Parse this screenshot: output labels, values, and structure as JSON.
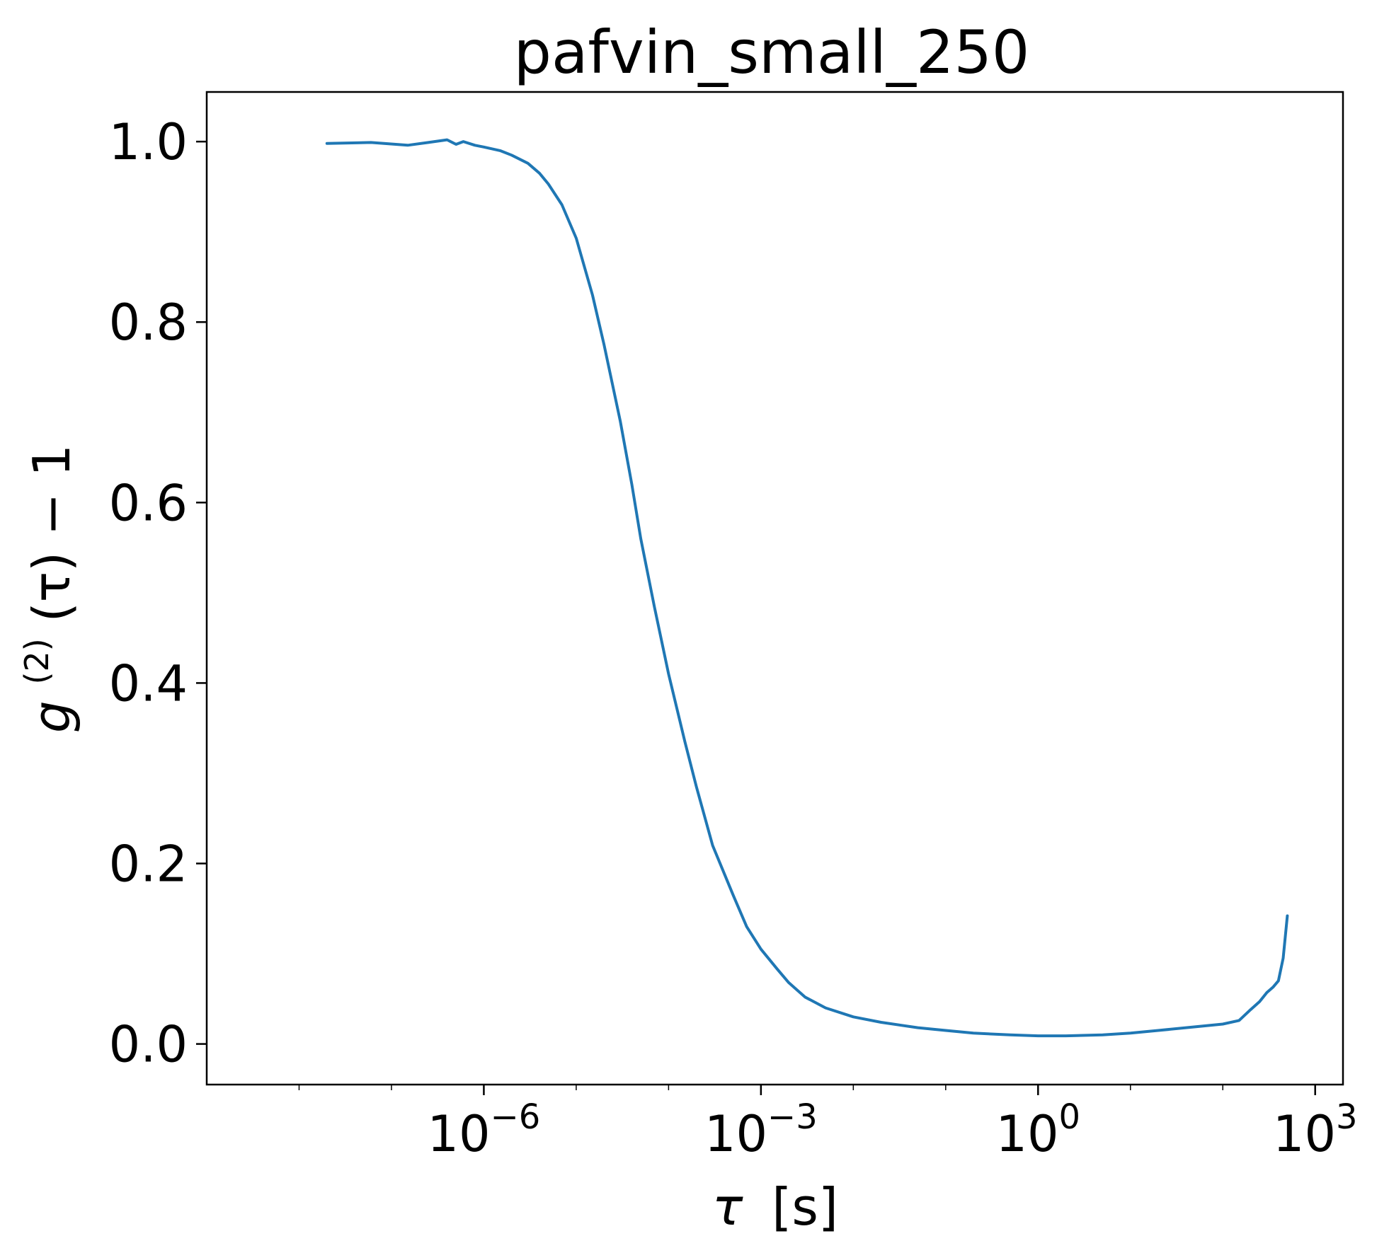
{
  "chart_data": {
    "type": "line",
    "title": "pafvin_small_250",
    "xlabel": {
      "symbol": "τ",
      "unit": "[s]"
    },
    "ylabel": {
      "base": "g",
      "superscript": "(2)",
      "rest": "(τ) − 1"
    },
    "xscale": "log",
    "xlim": [
      1e-09,
      2000
    ],
    "ylim": [
      -0.045,
      1.055
    ],
    "grid": false,
    "legend": "none",
    "colors": {
      "line": "#1f77b4",
      "axes": "#000000"
    },
    "xticks": [
      {
        "value": 1e-06,
        "base": "10",
        "exp": "−6"
      },
      {
        "value": 0.001,
        "base": "10",
        "exp": "−3"
      },
      {
        "value": 1,
        "base": "10",
        "exp": "0"
      },
      {
        "value": 1000,
        "base": "10",
        "exp": "3"
      }
    ],
    "yticks": [
      {
        "value": 0.0,
        "label": "0.0"
      },
      {
        "value": 0.2,
        "label": "0.2"
      },
      {
        "value": 0.4,
        "label": "0.4"
      },
      {
        "value": 0.6,
        "label": "0.6"
      },
      {
        "value": 0.8,
        "label": "0.8"
      },
      {
        "value": 1.0,
        "label": "1.0"
      }
    ],
    "series": [
      {
        "x": [
          2e-08,
          6e-08,
          1.5e-07,
          2.5e-07,
          4e-07,
          5e-07,
          6e-07,
          8e-07,
          1e-06,
          1.5e-06,
          2e-06,
          3e-06,
          4e-06,
          5e-06,
          7e-06,
          1e-05,
          1.5e-05,
          2e-05,
          3e-05,
          4e-05,
          5e-05,
          7e-05,
          0.0001,
          0.00015,
          0.0002,
          0.0003,
          0.0005,
          0.0007,
          0.001,
          0.0015,
          0.002,
          0.003,
          0.005,
          0.01,
          0.02,
          0.05,
          0.1,
          0.2,
          0.5,
          1,
          2,
          5,
          10,
          20,
          50,
          100,
          150,
          200,
          250,
          300,
          350,
          400,
          450,
          500
        ],
        "y": [
          0.998,
          0.999,
          0.996,
          0.999,
          1.002,
          0.997,
          1.0,
          0.996,
          0.994,
          0.99,
          0.985,
          0.976,
          0.965,
          0.953,
          0.93,
          0.893,
          0.83,
          0.775,
          0.69,
          0.62,
          0.56,
          0.485,
          0.41,
          0.335,
          0.285,
          0.22,
          0.165,
          0.13,
          0.105,
          0.083,
          0.068,
          0.052,
          0.04,
          0.03,
          0.024,
          0.018,
          0.015,
          0.012,
          0.01,
          0.009,
          0.009,
          0.01,
          0.012,
          0.015,
          0.019,
          0.022,
          0.026,
          0.038,
          0.047,
          0.057,
          0.063,
          0.07,
          0.095,
          0.142
        ]
      }
    ]
  }
}
